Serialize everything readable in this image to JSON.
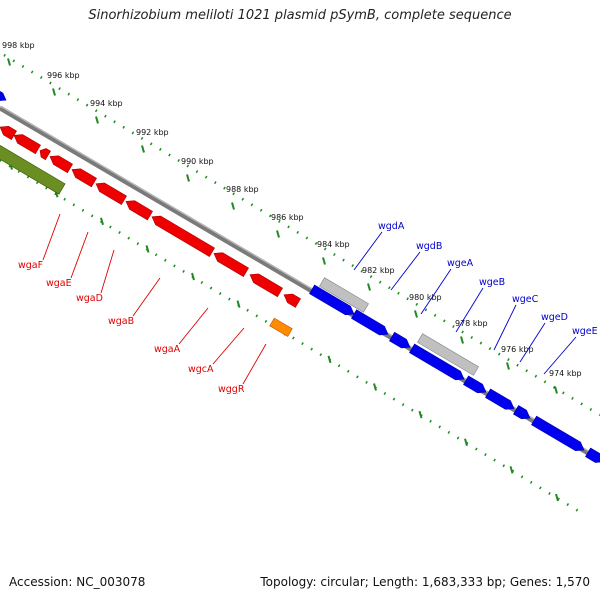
{
  "title": "Sinorhizobium meliloti 1021 plasmid pSymB, complete sequence",
  "footer": {
    "accession": "Accession: NC_003078",
    "summary": "Topology: circular; Length: 1,683,333 bp; Genes: 1,570"
  },
  "colors": {
    "backbone": "#7a7a7a",
    "ticks": "#1f8a1f",
    "reverse_genes": "#ee0000",
    "forward_genes": "#0000ee",
    "rrna_or_other": "#6b8e23",
    "trna": "#ff8c00",
    "pseudo": "#c0c0c0",
    "reverse_label": "#dd0000",
    "forward_label": "#0000cc"
  },
  "scale_labels": [
    "998 kbp",
    "996 kbp",
    "994 kbp",
    "992 kbp",
    "990 kbp",
    "988 kbp",
    "986 kbp",
    "984 kbp",
    "982 kbp",
    "980 kbp",
    "978 kbp",
    "976 kbp",
    "974 kbp"
  ],
  "reverse_gene_labels": [
    "wgaF",
    "wgaE",
    "wgaD",
    "wgaB",
    "wgaA",
    "wgcA",
    "wggR"
  ],
  "forward_gene_labels": [
    "wgdA",
    "wgdB",
    "wgeA",
    "wgeB",
    "wgeC",
    "wgeD",
    "wgeE"
  ]
}
